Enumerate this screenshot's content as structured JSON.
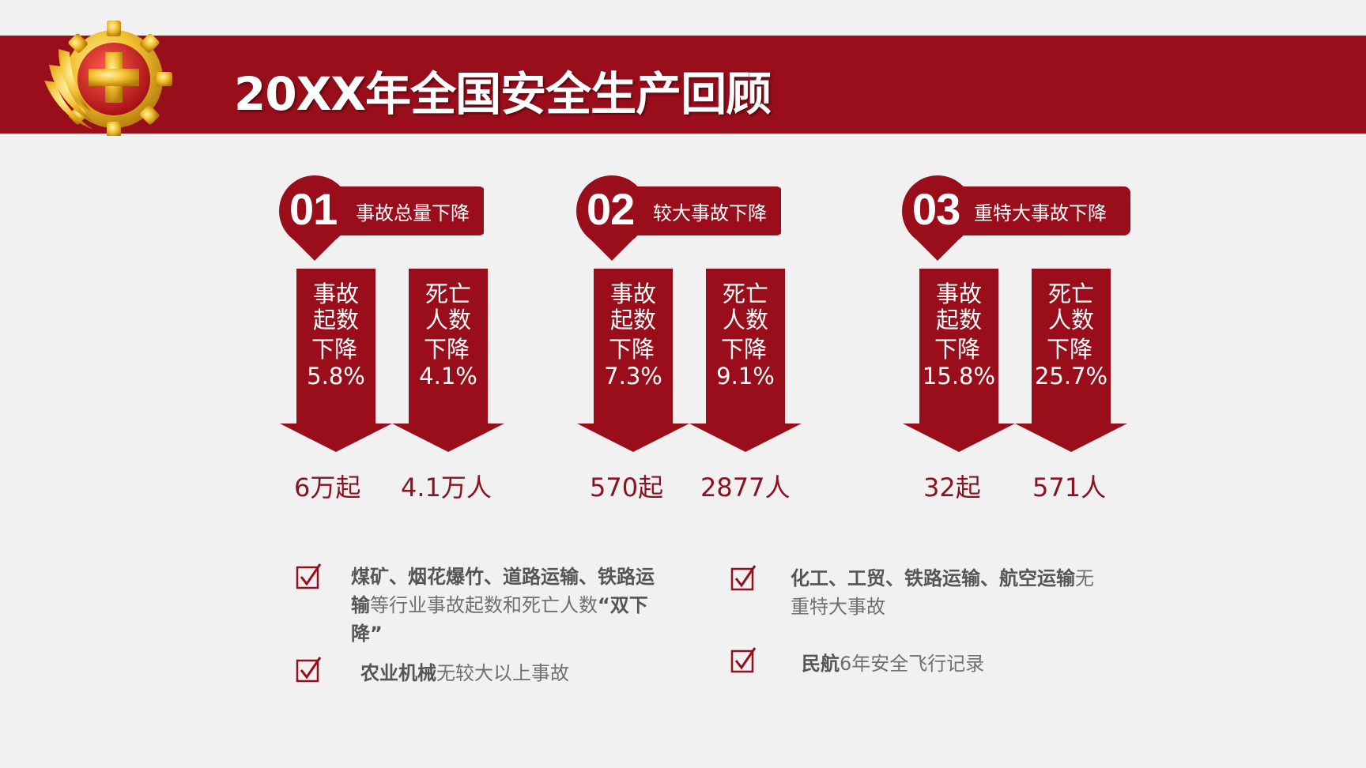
{
  "title": "20XX年全国安全生产回顾",
  "colors": {
    "primary": "#9a0e1c",
    "header": "#9a0e1c",
    "text": "#8a1320",
    "note": "#707070",
    "background": "#f2f1f1"
  },
  "groups": [
    {
      "num": "01",
      "label": "事故总量下降",
      "items": [
        {
          "l1": "事故",
          "l2": "起数",
          "l3": "下降",
          "pct": "5.8%",
          "count": "6万起"
        },
        {
          "l1": "死亡",
          "l2": "人数",
          "l3": "下降",
          "pct": "4.1%",
          "count": "4.1万人"
        }
      ]
    },
    {
      "num": "02",
      "label": "较大事故下降",
      "items": [
        {
          "l1": "事故",
          "l2": "起数",
          "l3": "下降",
          "pct": "7.3%",
          "count": "570起"
        },
        {
          "l1": "死亡",
          "l2": "人数",
          "l3": "下降",
          "pct": "9.1%",
          "count": "2877人"
        }
      ]
    },
    {
      "num": "03",
      "label": "重特大事故下降",
      "items": [
        {
          "l1": "事故",
          "l2": "起数",
          "l3": "下降",
          "pct": "15.8%",
          "count": "32起"
        },
        {
          "l1": "死亡",
          "l2": "人数",
          "l3": "下降",
          "pct": "25.7%",
          "count": "571人"
        }
      ]
    }
  ],
  "notes": {
    "n1": {
      "b1": "煤矿、烟花爆竹、道路运输、铁路运",
      "b2": "输",
      "t1": "等行业事故起数和死亡人数",
      "b3": "“双下",
      "b4": "降”"
    },
    "n2": {
      "b1": "农业机械",
      "t1": "无较大以上事故"
    },
    "n3": {
      "b1": "化工、工贸、铁路运输、航空运输",
      "t1": "无",
      "t2": "重特大事故"
    },
    "n4": {
      "b1": "民航",
      "t1": "6年安全飞行记录"
    }
  },
  "icons": {
    "check": "checkbox-check-icon",
    "emblem": "safety-emblem-icon"
  }
}
